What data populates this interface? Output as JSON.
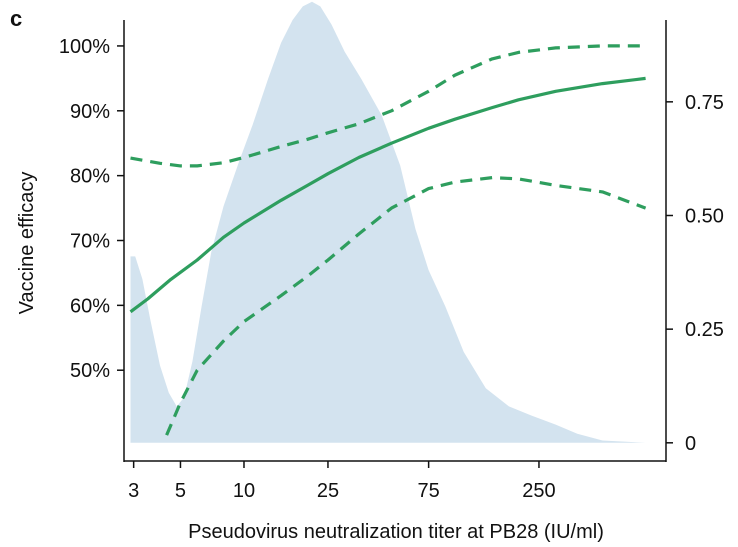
{
  "panel_label": "c",
  "chart_data": {
    "type": "line",
    "xlabel": "Pseudovirus neutralization titer at PB28 (IU/ml)",
    "ylabel": "Vaccine efficacy",
    "x_scale": "log",
    "xlim": [
      2.7,
      1000
    ],
    "ylim": [
      0.36,
      1.04
    ],
    "y2lim": [
      -0.04,
      0.93
    ],
    "x_ticks": [
      3,
      5,
      10,
      25,
      75,
      250
    ],
    "x_tick_labels": [
      "3",
      "5",
      "10",
      "25",
      "75",
      "250"
    ],
    "y_ticks": [
      0.5,
      0.6,
      0.7,
      0.8,
      0.9,
      1.0
    ],
    "y_tick_labels": [
      "50%",
      "60%",
      "70%",
      "80%",
      "90%",
      "100%"
    ],
    "y2_ticks": [
      0,
      0.25,
      0.5,
      0.75
    ],
    "y2_tick_labels": [
      "0",
      "0.25",
      "0.50",
      "0.75"
    ],
    "grid": false,
    "colors": {
      "line": "#2e9e5e",
      "density_fill": "#d3e3ef"
    },
    "series": [
      {
        "style": "solid",
        "axis": "left",
        "x": [
          2.9,
          3.5,
          4.5,
          6,
          8,
          10,
          15,
          20,
          25,
          35,
          50,
          75,
          100,
          150,
          200,
          300,
          500,
          800
        ],
        "y": [
          0.59,
          0.61,
          0.64,
          0.67,
          0.705,
          0.727,
          0.762,
          0.785,
          0.803,
          0.828,
          0.85,
          0.873,
          0.887,
          0.905,
          0.917,
          0.93,
          0.942,
          0.95
        ]
      },
      {
        "style": "dashed",
        "axis": "left",
        "x": [
          2.9,
          4,
          5,
          6,
          8,
          10,
          15,
          20,
          25,
          35,
          50,
          75,
          100,
          150,
          200,
          300,
          500,
          800
        ],
        "y": [
          0.827,
          0.819,
          0.815,
          0.815,
          0.82,
          0.828,
          0.845,
          0.856,
          0.866,
          0.88,
          0.9,
          0.93,
          0.955,
          0.98,
          0.99,
          0.997,
          1.0,
          1.0
        ]
      },
      {
        "style": "dashed",
        "axis": "left",
        "x": [
          4.3,
          5,
          6,
          8,
          10,
          15,
          20,
          25,
          35,
          50,
          75,
          100,
          150,
          200,
          300,
          500,
          800
        ],
        "y": [
          0.4,
          0.45,
          0.5,
          0.545,
          0.575,
          0.615,
          0.645,
          0.67,
          0.71,
          0.75,
          0.78,
          0.79,
          0.797,
          0.795,
          0.785,
          0.775,
          0.75
        ]
      },
      {
        "type": "area",
        "axis": "right",
        "x": [
          2.9,
          3.05,
          3.3,
          3.6,
          4,
          4.4,
          4.8,
          5.2,
          5.7,
          6.3,
          7,
          8,
          9.5,
          11,
          13,
          15,
          17,
          19,
          21,
          23,
          26,
          30,
          36,
          45,
          55,
          65,
          75,
          90,
          110,
          140,
          180,
          230,
          300,
          380,
          500,
          800
        ],
        "y": [
          0.41,
          0.41,
          0.36,
          0.27,
          0.17,
          0.11,
          0.08,
          0.1,
          0.18,
          0.3,
          0.42,
          0.52,
          0.62,
          0.7,
          0.8,
          0.88,
          0.93,
          0.96,
          0.97,
          0.96,
          0.92,
          0.86,
          0.8,
          0.72,
          0.61,
          0.47,
          0.38,
          0.3,
          0.2,
          0.12,
          0.08,
          0.06,
          0.04,
          0.02,
          0.005,
          0
        ]
      }
    ]
  }
}
